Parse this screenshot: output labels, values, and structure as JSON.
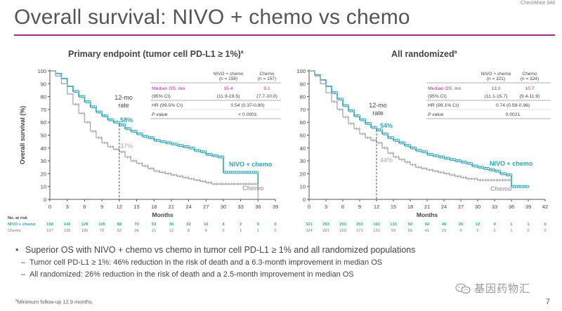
{
  "header": {
    "trial_tag": "CheckMate 648",
    "title": "Overall survival: NIVO + chemo vs chemo"
  },
  "colors": {
    "nivo": "#2aa4b8",
    "chemo": "#a9a9a9",
    "accent": "#9b2d8f",
    "highlight": "#b03090"
  },
  "chart_data": [
    {
      "type": "line",
      "title": "Primary endpoint (tumor cell PD-L1 ≥ 1%)",
      "title_sup": "a",
      "xlabel": "Months",
      "ylabel": "Overall survival (%)",
      "xlim": [
        0,
        39
      ],
      "ylim": [
        0,
        100
      ],
      "xticks": [
        0,
        3,
        6,
        9,
        12,
        15,
        18,
        21,
        24,
        27,
        30,
        33,
        36,
        39
      ],
      "yticks": [
        0,
        10,
        20,
        30,
        40,
        50,
        60,
        70,
        80,
        90,
        100
      ],
      "landmark": {
        "month": 12,
        "label": "12-mo\nrate",
        "nivo_text": "58%",
        "chemo_text": "37%",
        "nivo_value": 58,
        "chemo_value": 37
      },
      "series": [
        {
          "name": "NIVO + chemo",
          "label": "NIVO + chemo",
          "x": [
            0,
            1,
            2,
            3,
            4,
            5,
            6,
            7,
            8,
            9,
            10,
            11,
            12,
            13,
            14,
            15,
            16,
            17,
            18,
            19,
            20,
            21,
            22,
            23,
            24,
            25,
            26,
            27,
            28,
            29,
            30,
            31,
            32,
            33,
            34,
            35,
            36
          ],
          "y": [
            100,
            98,
            94,
            88,
            84,
            80,
            76,
            72,
            68,
            65,
            62,
            60,
            58,
            55,
            53,
            51,
            49,
            48,
            46,
            45,
            44,
            43,
            42,
            41,
            40,
            38,
            37,
            35,
            34,
            33,
            21,
            21,
            21,
            21,
            21,
            21,
            10
          ]
        },
        {
          "name": "Chemo",
          "label": "Chemo",
          "x": [
            0,
            1,
            2,
            3,
            4,
            5,
            6,
            7,
            8,
            9,
            10,
            11,
            12,
            13,
            14,
            15,
            16,
            17,
            18,
            19,
            20,
            21,
            22,
            23,
            24,
            25,
            26,
            27,
            28,
            29,
            30,
            31,
            32,
            33,
            34,
            35,
            36
          ],
          "y": [
            100,
            96,
            90,
            82,
            74,
            67,
            60,
            53,
            48,
            44,
            41,
            39,
            37,
            33,
            30,
            28,
            26,
            24,
            22,
            21,
            20,
            19,
            18,
            17,
            16,
            15,
            14,
            13,
            12,
            12,
            12,
            12,
            12,
            12,
            12,
            12,
            0
          ]
        }
      ],
      "stats_table": {
        "col_nivo": "NIVO + chemo",
        "col_nivo_n": "(n = 158)",
        "col_chemo": "Chemo",
        "col_chemo_n": "(n = 157)",
        "rows": [
          {
            "label": "Median OS, mo",
            "nivo": "15.4",
            "chemo": "9.1",
            "highlight": true
          },
          {
            "label": "(95% CI)",
            "nivo": "(11.9-19.5)",
            "chemo": "(7.7-10.0)",
            "highlight": false
          }
        ],
        "hr_label": "HR (99.5% CI)",
        "hr_value": "0.54 (0.37-0.80)",
        "p_label": "P value",
        "p_value": "< 0.0001"
      },
      "risk_table": {
        "header": "No. at risk",
        "nivo_label": "NIVO + chemo",
        "chemo_label": "Chemo",
        "nivo": [
          "158",
          "143",
          "129",
          "105",
          "88",
          "70",
          "53",
          "36",
          "22",
          "16",
          "4",
          "2",
          "0",
          "0"
        ],
        "chemo": [
          "157",
          "135",
          "105",
          "72",
          "52",
          "36",
          "21",
          "12",
          "8",
          "4",
          "2",
          "1",
          "1",
          "0"
        ]
      }
    },
    {
      "type": "line",
      "title": "All randomized",
      "title_sup": "a",
      "xlabel": "Months",
      "ylabel": "",
      "xlim": [
        0,
        42
      ],
      "ylim": [
        0,
        100
      ],
      "xticks": [
        0,
        3,
        6,
        9,
        12,
        15,
        18,
        21,
        24,
        27,
        30,
        33,
        36,
        39,
        42
      ],
      "yticks": [
        0,
        10,
        20,
        30,
        40,
        50,
        60,
        70,
        80,
        90,
        100
      ],
      "landmark": {
        "month": 12,
        "label": "12-mo\nrate",
        "nivo_text": "54%",
        "chemo_text": "44%",
        "nivo_value": 54,
        "chemo_value": 44
      },
      "series": [
        {
          "name": "NIVO + chemo",
          "label": "NIVO + chemo",
          "x": [
            0,
            1,
            2,
            3,
            4,
            5,
            6,
            7,
            8,
            9,
            10,
            11,
            12,
            13,
            14,
            15,
            16,
            17,
            18,
            19,
            20,
            21,
            22,
            23,
            24,
            25,
            26,
            27,
            28,
            29,
            30,
            31,
            32,
            33,
            34,
            35,
            36,
            37,
            38,
            39
          ],
          "y": [
            100,
            97,
            93,
            88,
            83,
            78,
            73,
            69,
            65,
            62,
            59,
            56,
            54,
            51,
            48,
            46,
            44,
            42,
            40,
            38,
            37,
            35,
            34,
            33,
            32,
            31,
            30,
            29,
            28,
            26,
            25,
            24,
            23,
            22,
            20,
            19,
            10,
            10,
            10,
            10
          ]
        },
        {
          "name": "Chemo",
          "label": "Chemo",
          "x": [
            0,
            1,
            2,
            3,
            4,
            5,
            6,
            7,
            8,
            9,
            10,
            11,
            12,
            13,
            14,
            15,
            16,
            17,
            18,
            19,
            20,
            21,
            22,
            23,
            24,
            25,
            26,
            27,
            28,
            29,
            30,
            31,
            32,
            33,
            34,
            35,
            36
          ],
          "y": [
            100,
            96,
            90,
            83,
            76,
            70,
            64,
            59,
            55,
            51,
            48,
            46,
            44,
            40,
            36,
            33,
            31,
            29,
            27,
            25,
            24,
            23,
            22,
            21,
            20,
            19,
            18,
            17,
            16,
            16,
            15,
            15,
            15,
            15,
            15,
            15,
            15
          ]
        }
      ],
      "stats_table": {
        "col_nivo": "NIVO + chemo",
        "col_nivo_n": "(n = 321)",
        "col_chemo": "Chemo",
        "col_chemo_n": "(n = 324)",
        "rows": [
          {
            "label": "Median OS, mo",
            "nivo": "13.2",
            "chemo": "10.7",
            "highlight": true
          },
          {
            "label": "(95% CI)",
            "nivo": "(11.1-15.7)",
            "chemo": "(9.4-11.9)",
            "highlight": false
          }
        ],
        "hr_label": "HR (99.1% CI)",
        "hr_value": "0.74 (0.58-0.96)",
        "p_label": "P value",
        "p_value": "0.0021"
      },
      "risk_table": {
        "header": "",
        "nivo_label": "",
        "chemo_label": "",
        "nivo": [
          "321",
          "293",
          "253",
          "203",
          "163",
          "133",
          "92",
          "60",
          "40",
          "26",
          "12",
          "4",
          "1",
          "1",
          "0"
        ],
        "chemo": [
          "324",
          "281",
          "229",
          "171",
          "131",
          "93",
          "56",
          "41",
          "23",
          "9",
          "5",
          "2",
          "1",
          "0",
          "0"
        ]
      }
    }
  ],
  "bullets": {
    "main": "Superior OS with NIVO + chemo vs chemo in tumor cell PD-L1 ≥ 1% and all randomized populations",
    "sub1": "Tumor cell PD-L1 ≥ 1%: 46% reduction in the risk of death and a 6.3-month improvement in median OS",
    "sub2": "All randomized: 26% reduction in the risk of death and a 2.5-month improvement in median OS"
  },
  "footnote": {
    "marker": "a",
    "text": "Minimum follow-up 12.9 months."
  },
  "page_number": "7",
  "watermark": "基因药物汇"
}
